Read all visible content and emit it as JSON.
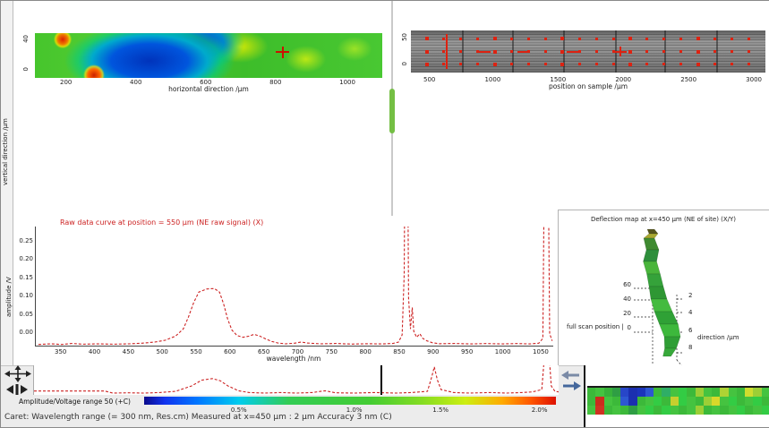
{
  "colors": {
    "trace_red": "#cc2222",
    "marker_red": "#dd2211",
    "splitter_green": "#74bf44",
    "cursor_black": "#111111",
    "jet_stops": [
      [
        "#0a0a8c",
        0
      ],
      [
        "#1133ee",
        5
      ],
      [
        "#0077ff",
        13
      ],
      [
        "#00ccee",
        23
      ],
      [
        "#33cc55",
        35
      ],
      [
        "#44cc33",
        55
      ],
      [
        "#88dd22",
        68
      ],
      [
        "#ccee11",
        78
      ],
      [
        "#ffaa00",
        87
      ],
      [
        "#ff5500",
        94
      ],
      [
        "#dd1100",
        100
      ]
    ]
  },
  "map_panel": {
    "side_label": "vertical direction /μm",
    "y_ticks": [
      "40",
      "0"
    ],
    "x_ticks": [
      "200",
      "400",
      "600",
      "800",
      "1000"
    ],
    "xlabel": "horizontal direction /μm"
  },
  "camera_panel": {
    "y_ticks": [
      "50",
      "0"
    ],
    "x_ticks": [
      "500",
      "1000",
      "1500",
      "2000",
      "2500",
      "3000"
    ],
    "xlabel": "position on sample /μm"
  },
  "spectrum_panel": {
    "title": "Raw data curve at position = 550 μm (NE raw signal) (X)",
    "side_label": "amplitude /V",
    "y_ticks": [
      "0.25",
      "0.20",
      "0.15",
      "0.10",
      "0.05",
      "0.00"
    ],
    "x_ticks": [
      "350",
      "400",
      "450",
      "500",
      "550",
      "600",
      "650",
      "700",
      "750",
      "800",
      "850",
      "900",
      "950",
      "1000",
      "1050"
    ],
    "xlabel": "wavelength /nm"
  },
  "surface_panel": {
    "title": "Deflection map at x=450 μm (NE of site) (X/Y)",
    "left_ticks": [
      "60",
      "40",
      "20",
      "0"
    ],
    "right_ticks": [
      "2",
      "4",
      "6",
      "8"
    ],
    "left_label": "full scan position |",
    "right_label": "direction /μm",
    "corner_label": "4 μm"
  },
  "bottom_bar": {
    "trace_label": "Amplitude/Voltage range 50 (+C)",
    "gradient_ticks": [
      "0.5%",
      "1.0%",
      "1.5%",
      "2.0%"
    ],
    "gradient_tick_pos": [
      0.23,
      0.51,
      0.72,
      0.96
    ],
    "status_text": "Caret: Wavelength range (= 300 nm, Res.cm)  Measured at x=450 μm : 2 μm   Accuracy 3 nm (C)"
  },
  "chart_data": [
    {
      "type": "heatmap",
      "name": "surface-map-2d",
      "title": "",
      "xlabel": "horizontal direction /μm",
      "x_ticks": [
        "200",
        "400",
        "600",
        "800",
        "1000"
      ],
      "y_ticks": [
        "40",
        "0"
      ],
      "description": "jet-colormap interpolated strip: green background, large blue depression near x=350-550, red hotspots top-left and bottom-left, yellow patches in right half",
      "cursor": {
        "x_frac": 0.63,
        "y_frac": 0.42
      }
    },
    {
      "type": "line",
      "name": "spectrum-trace",
      "xlabel": "wavelength /nm",
      "x_range": [
        350,
        1050
      ],
      "ylabel": "amplitude /V",
      "y_range": [
        0,
        0.25
      ],
      "legend": "dashed red trace",
      "peaks": [
        {
          "x_frac": 0.33,
          "height_frac": 0.48,
          "note": "broad flat-top peak"
        },
        {
          "x_frac": 0.716,
          "height_frac": 1.0,
          "note": "narrow saturated peak (clipped)"
        },
        {
          "x_frac": 0.986,
          "height_frac": 1.0,
          "note": "narrow saturated peak near right edge"
        }
      ],
      "pts": [
        [
          0.005,
          0.01
        ],
        [
          0.03,
          0.015
        ],
        [
          0.05,
          0.01
        ],
        [
          0.07,
          0.018
        ],
        [
          0.09,
          0.012
        ],
        [
          0.12,
          0.015
        ],
        [
          0.15,
          0.012
        ],
        [
          0.18,
          0.015
        ],
        [
          0.205,
          0.02
        ],
        [
          0.23,
          0.03
        ],
        [
          0.25,
          0.045
        ],
        [
          0.27,
          0.08
        ],
        [
          0.285,
          0.14
        ],
        [
          0.295,
          0.24
        ],
        [
          0.305,
          0.36
        ],
        [
          0.315,
          0.45
        ],
        [
          0.33,
          0.475
        ],
        [
          0.345,
          0.48
        ],
        [
          0.355,
          0.45
        ],
        [
          0.363,
          0.35
        ],
        [
          0.371,
          0.22
        ],
        [
          0.379,
          0.13
        ],
        [
          0.389,
          0.085
        ],
        [
          0.4,
          0.07
        ],
        [
          0.412,
          0.08
        ],
        [
          0.422,
          0.095
        ],
        [
          0.433,
          0.08
        ],
        [
          0.445,
          0.055
        ],
        [
          0.456,
          0.035
        ],
        [
          0.468,
          0.022
        ],
        [
          0.483,
          0.015
        ],
        [
          0.5,
          0.02
        ],
        [
          0.513,
          0.03
        ],
        [
          0.525,
          0.022
        ],
        [
          0.55,
          0.015
        ],
        [
          0.58,
          0.018
        ],
        [
          0.61,
          0.013
        ],
        [
          0.64,
          0.016
        ],
        [
          0.67,
          0.014
        ],
        [
          0.69,
          0.018
        ],
        [
          0.701,
          0.03
        ],
        [
          0.708,
          0.09
        ],
        [
          0.712,
          0.6
        ],
        [
          0.7145,
          2.4
        ],
        [
          0.7175,
          2.4
        ],
        [
          0.7205,
          0.4
        ],
        [
          0.724,
          0.14
        ],
        [
          0.7275,
          0.32
        ],
        [
          0.7305,
          0.12
        ],
        [
          0.736,
          0.07
        ],
        [
          0.742,
          0.1
        ],
        [
          0.748,
          0.06
        ],
        [
          0.756,
          0.04
        ],
        [
          0.766,
          0.025
        ],
        [
          0.78,
          0.016
        ],
        [
          0.81,
          0.018
        ],
        [
          0.84,
          0.014
        ],
        [
          0.87,
          0.017
        ],
        [
          0.9,
          0.014
        ],
        [
          0.93,
          0.017
        ],
        [
          0.955,
          0.014
        ],
        [
          0.972,
          0.02
        ],
        [
          0.98,
          0.06
        ],
        [
          0.9845,
          2.4
        ],
        [
          0.9885,
          2.4
        ],
        [
          0.993,
          0.1
        ],
        [
          0.998,
          0.04
        ]
      ]
    },
    {
      "type": "line",
      "name": "overview-trace",
      "legend": "condensed overview of trace with black range cursor",
      "cursor_x_frac": 0.662,
      "pts": [
        [
          0.0,
          0.13
        ],
        [
          0.135,
          0.13
        ],
        [
          0.15,
          0.06
        ],
        [
          0.18,
          0.07
        ],
        [
          0.21,
          0.06
        ],
        [
          0.24,
          0.08
        ],
        [
          0.27,
          0.12
        ],
        [
          0.3,
          0.3
        ],
        [
          0.32,
          0.5
        ],
        [
          0.34,
          0.55
        ],
        [
          0.355,
          0.48
        ],
        [
          0.37,
          0.3
        ],
        [
          0.39,
          0.14
        ],
        [
          0.41,
          0.08
        ],
        [
          0.44,
          0.06
        ],
        [
          0.47,
          0.08
        ],
        [
          0.5,
          0.06
        ],
        [
          0.53,
          0.08
        ],
        [
          0.555,
          0.14
        ],
        [
          0.575,
          0.07
        ],
        [
          0.61,
          0.06
        ],
        [
          0.65,
          0.08
        ],
        [
          0.69,
          0.06
        ],
        [
          0.72,
          0.08
        ],
        [
          0.75,
          0.12
        ],
        [
          0.758,
          0.6
        ],
        [
          0.763,
          0.95
        ],
        [
          0.769,
          0.5
        ],
        [
          0.776,
          0.18
        ],
        [
          0.8,
          0.08
        ],
        [
          0.83,
          0.06
        ],
        [
          0.87,
          0.08
        ],
        [
          0.9,
          0.06
        ],
        [
          0.93,
          0.08
        ],
        [
          0.95,
          0.1
        ],
        [
          0.968,
          0.18
        ],
        [
          0.975,
          1.8
        ],
        [
          0.98,
          1.8
        ],
        [
          0.986,
          0.3
        ],
        [
          0.993,
          0.12
        ],
        [
          1.0,
          0.1
        ]
      ]
    },
    {
      "type": "scatter",
      "name": "camera-markers",
      "legend": "red fiducial marker grid over grayscale camera strip",
      "rows": [
        0.2,
        0.5,
        0.8
      ],
      "cols": 20,
      "x_start": 0.045,
      "x_step": 0.0478,
      "crosshair": {
        "x": 0.592,
        "y": 0.5
      },
      "vline_x": 0.098,
      "dashes": [
        [
          0.19,
          0.5
        ],
        [
          0.3,
          0.5
        ],
        [
          0.44,
          0.5
        ]
      ],
      "seams": [
        0.145,
        0.285,
        0.43,
        0.575,
        0.715,
        0.86
      ]
    },
    {
      "type": "surface",
      "name": "ribbon-3d",
      "legend": "narrow twisted green 3D surface ribbon with dashed axes",
      "segments": [
        [
          104,
          22,
          8,
          "#55551e"
        ],
        [
          107,
          27,
          10,
          "#a8a832"
        ],
        [
          102,
          32,
          12,
          "#3f8a30"
        ],
        [
          106,
          45,
          14,
          "#2e8f3c"
        ],
        [
          103,
          58,
          15,
          "#49b53b"
        ],
        [
          107,
          72,
          15,
          "#35a23a"
        ],
        [
          110,
          86,
          16,
          "#2e9733"
        ],
        [
          113,
          100,
          18,
          "#44bb3f"
        ],
        [
          118,
          114,
          20,
          "#2fa136"
        ],
        [
          124,
          128,
          21,
          "#3db83c"
        ],
        [
          128,
          142,
          18,
          "#2f9e35"
        ],
        [
          126,
          155,
          13,
          "#37a83a"
        ],
        [
          122,
          164,
          9,
          "#2c8f30"
        ]
      ],
      "axes": [
        [
          106,
          78,
          106,
          176
        ],
        [
          133,
          95,
          133,
          168
        ],
        [
          85,
          88,
          106,
          88
        ],
        [
          85,
          101,
          106,
          101
        ],
        [
          85,
          120,
          106,
          120
        ],
        [
          85,
          137,
          106,
          137
        ],
        [
          133,
          100,
          141,
          100
        ],
        [
          133,
          115,
          141,
          115
        ],
        [
          133,
          137,
          141,
          137
        ],
        [
          133,
          160,
          141,
          160
        ],
        [
          106,
          176,
          97,
          186
        ],
        [
          133,
          168,
          142,
          178
        ]
      ]
    },
    {
      "type": "heatmap",
      "name": "pixel-map",
      "legend": "coarse result pixel map, jet colormap",
      "cell_colors": [
        [
          "#3cb93a",
          "#45c340",
          "#37b23a",
          "#2f9e44",
          "#2746c8",
          "#1b2fb0",
          "#1b35bb",
          "#2d57d2",
          "#3cb93a",
          "#2fae66",
          "#45c340",
          "#33cc44",
          "#3cb93a",
          "#9ccf36",
          "#45c340",
          "#3cb93a",
          "#aed334",
          "#45c340",
          "#3cb93a",
          "#cedd2e",
          "#9ccf36",
          "#45c340"
        ],
        [
          "#3cb93a",
          "#cc2b1d",
          "#45c340",
          "#3cb93a",
          "#2d57d2",
          "#1b2fb0",
          "#3cb93a",
          "#45c340",
          "#33cc44",
          "#3cb93a",
          "#c6cf2e",
          "#33cc44",
          "#45c340",
          "#3cb93a",
          "#9ccf36",
          "#d8d82a",
          "#45c340",
          "#33cc44",
          "#3cb93a",
          "#45c340",
          "#33cc44",
          "#3cb93a"
        ],
        [
          "#45c340",
          "#d03323",
          "#3cb93a",
          "#45c340",
          "#3cb93a",
          "#2f9e44",
          "#45c340",
          "#33cc44",
          "#3cb93a",
          "#33cc44",
          "#45c340",
          "#3cb93a",
          "#45c340",
          "#9ccf36",
          "#3cb93a",
          "#45c340",
          "#3cb93a",
          "#45c340",
          "#33cc44",
          "#3cb93a",
          "#45c340",
          "#33cc44"
        ]
      ]
    }
  ]
}
